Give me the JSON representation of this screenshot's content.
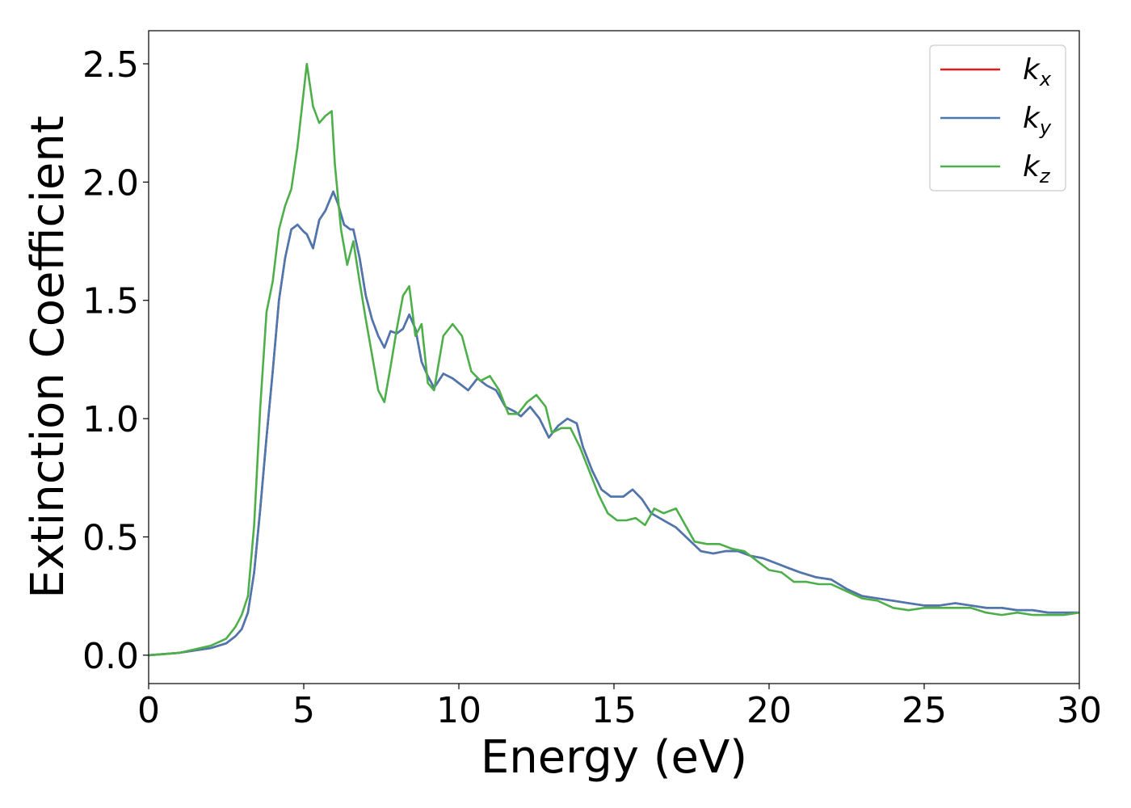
{
  "chart_data": {
    "type": "line",
    "title": "",
    "xlabel": "Energy (eV)",
    "ylabel": "Extinction Coefficient",
    "xlim": [
      0,
      30
    ],
    "ylim": [
      -0.12,
      2.64
    ],
    "xticks": [
      0,
      5,
      10,
      15,
      20,
      25,
      30
    ],
    "xtick_labels": [
      "0",
      "5",
      "10",
      "15",
      "20",
      "25",
      "30"
    ],
    "yticks": [
      0.0,
      0.5,
      1.0,
      1.5,
      2.0,
      2.5
    ],
    "ytick_labels": [
      "0.0",
      "0.5",
      "1.0",
      "1.5",
      "2.0",
      "2.5"
    ],
    "grid": false,
    "legend_position": "top-right",
    "series": [
      {
        "name": "k_x",
        "legend_base": "k",
        "legend_sub": "x",
        "color": "#e41a1c",
        "x": [
          0,
          1,
          2,
          2.5,
          2.8,
          3,
          3.2,
          3.4,
          3.6,
          3.8,
          4,
          4.2,
          4.4,
          4.6,
          4.8,
          5,
          5.1,
          5.3,
          5.5,
          5.7,
          5.95,
          6.1,
          6.3,
          6.5,
          6.6,
          6.8,
          7.0,
          7.2,
          7.4,
          7.6,
          7.8,
          8.0,
          8.2,
          8.4,
          8.6,
          8.8,
          9.0,
          9.2,
          9.5,
          9.8,
          10.0,
          10.3,
          10.6,
          10.9,
          11.2,
          11.5,
          11.8,
          12.0,
          12.3,
          12.6,
          12.9,
          13.2,
          13.5,
          13.8,
          14.0,
          14.3,
          14.6,
          14.9,
          15.3,
          15.6,
          15.9,
          16.2,
          16.6,
          17.0,
          17.4,
          17.8,
          18.2,
          18.6,
          19.0,
          19.4,
          19.8,
          20.2,
          20.6,
          21.0,
          21.5,
          22.0,
          22.5,
          23.0,
          23.5,
          24.0,
          24.5,
          25.0,
          25.5,
          26.0,
          26.5,
          27.0,
          27.5,
          28.0,
          28.5,
          29.0,
          29.5,
          30.0
        ],
        "y": [
          0.0,
          0.01,
          0.03,
          0.05,
          0.08,
          0.11,
          0.18,
          0.35,
          0.62,
          0.92,
          1.2,
          1.5,
          1.68,
          1.8,
          1.82,
          1.79,
          1.78,
          1.72,
          1.84,
          1.88,
          1.96,
          1.91,
          1.82,
          1.8,
          1.8,
          1.68,
          1.52,
          1.42,
          1.35,
          1.3,
          1.37,
          1.36,
          1.38,
          1.44,
          1.38,
          1.24,
          1.18,
          1.13,
          1.19,
          1.17,
          1.15,
          1.12,
          1.17,
          1.14,
          1.12,
          1.05,
          1.03,
          1.01,
          1.05,
          1.0,
          0.92,
          0.97,
          1.0,
          0.98,
          0.88,
          0.78,
          0.7,
          0.67,
          0.67,
          0.7,
          0.66,
          0.6,
          0.57,
          0.54,
          0.49,
          0.44,
          0.43,
          0.44,
          0.44,
          0.42,
          0.41,
          0.39,
          0.37,
          0.35,
          0.33,
          0.32,
          0.28,
          0.25,
          0.24,
          0.23,
          0.22,
          0.21,
          0.21,
          0.22,
          0.21,
          0.2,
          0.2,
          0.19,
          0.19,
          0.18,
          0.18,
          0.18
        ]
      },
      {
        "name": "k_y",
        "legend_base": "k",
        "legend_sub": "y",
        "color": "#4a78b0",
        "x": [
          0,
          1,
          2,
          2.5,
          2.8,
          3,
          3.2,
          3.4,
          3.6,
          3.8,
          4,
          4.2,
          4.4,
          4.6,
          4.8,
          5,
          5.1,
          5.3,
          5.5,
          5.7,
          5.95,
          6.1,
          6.3,
          6.5,
          6.6,
          6.8,
          7.0,
          7.2,
          7.4,
          7.6,
          7.8,
          8.0,
          8.2,
          8.4,
          8.6,
          8.8,
          9.0,
          9.2,
          9.5,
          9.8,
          10.0,
          10.3,
          10.6,
          10.9,
          11.2,
          11.5,
          11.8,
          12.0,
          12.3,
          12.6,
          12.9,
          13.2,
          13.5,
          13.8,
          14.0,
          14.3,
          14.6,
          14.9,
          15.3,
          15.6,
          15.9,
          16.2,
          16.6,
          17.0,
          17.4,
          17.8,
          18.2,
          18.6,
          19.0,
          19.4,
          19.8,
          20.2,
          20.6,
          21.0,
          21.5,
          22.0,
          22.5,
          23.0,
          23.5,
          24.0,
          24.5,
          25.0,
          25.5,
          26.0,
          26.5,
          27.0,
          27.5,
          28.0,
          28.5,
          29.0,
          29.5,
          30.0
        ],
        "y": [
          0.0,
          0.01,
          0.03,
          0.05,
          0.08,
          0.11,
          0.18,
          0.35,
          0.62,
          0.92,
          1.2,
          1.5,
          1.68,
          1.8,
          1.82,
          1.79,
          1.78,
          1.72,
          1.84,
          1.88,
          1.96,
          1.91,
          1.82,
          1.8,
          1.8,
          1.68,
          1.52,
          1.42,
          1.35,
          1.3,
          1.37,
          1.36,
          1.38,
          1.44,
          1.38,
          1.24,
          1.18,
          1.13,
          1.19,
          1.17,
          1.15,
          1.12,
          1.17,
          1.14,
          1.12,
          1.05,
          1.03,
          1.01,
          1.05,
          1.0,
          0.92,
          0.97,
          1.0,
          0.98,
          0.88,
          0.78,
          0.7,
          0.67,
          0.67,
          0.7,
          0.66,
          0.6,
          0.57,
          0.54,
          0.49,
          0.44,
          0.43,
          0.44,
          0.44,
          0.42,
          0.41,
          0.39,
          0.37,
          0.35,
          0.33,
          0.32,
          0.28,
          0.25,
          0.24,
          0.23,
          0.22,
          0.21,
          0.21,
          0.22,
          0.21,
          0.2,
          0.2,
          0.19,
          0.19,
          0.18,
          0.18,
          0.18
        ]
      },
      {
        "name": "k_z",
        "legend_base": "k",
        "legend_sub": "z",
        "color": "#4daf4a",
        "x": [
          0,
          1,
          2,
          2.5,
          2.8,
          3,
          3.2,
          3.4,
          3.6,
          3.8,
          4,
          4.2,
          4.4,
          4.6,
          4.8,
          5.1,
          5.3,
          5.5,
          5.7,
          5.9,
          6.0,
          6.2,
          6.4,
          6.6,
          6.8,
          7.0,
          7.2,
          7.4,
          7.6,
          7.8,
          8.0,
          8.2,
          8.4,
          8.6,
          8.8,
          9.0,
          9.2,
          9.5,
          9.8,
          10.1,
          10.4,
          10.7,
          11.0,
          11.3,
          11.6,
          11.9,
          12.2,
          12.5,
          12.8,
          13.0,
          13.3,
          13.6,
          13.9,
          14.2,
          14.5,
          14.8,
          15.1,
          15.4,
          15.7,
          16.0,
          16.3,
          16.6,
          17.0,
          17.3,
          17.6,
          18.0,
          18.4,
          18.8,
          19.2,
          19.6,
          20.0,
          20.4,
          20.8,
          21.2,
          21.6,
          22.0,
          22.5,
          23.0,
          23.5,
          24.0,
          24.5,
          25.0,
          25.5,
          26.0,
          26.5,
          27.0,
          27.5,
          28.0,
          28.5,
          29.0,
          29.5,
          30.0
        ],
        "y": [
          0.0,
          0.01,
          0.04,
          0.07,
          0.12,
          0.17,
          0.25,
          0.55,
          1.05,
          1.45,
          1.58,
          1.8,
          1.9,
          1.97,
          2.15,
          2.5,
          2.32,
          2.25,
          2.28,
          2.3,
          2.08,
          1.8,
          1.65,
          1.75,
          1.58,
          1.42,
          1.27,
          1.12,
          1.07,
          1.22,
          1.38,
          1.52,
          1.56,
          1.35,
          1.4,
          1.15,
          1.12,
          1.35,
          1.4,
          1.35,
          1.2,
          1.16,
          1.18,
          1.12,
          1.02,
          1.02,
          1.07,
          1.1,
          1.05,
          0.94,
          0.96,
          0.96,
          0.88,
          0.78,
          0.68,
          0.6,
          0.57,
          0.57,
          0.58,
          0.55,
          0.62,
          0.6,
          0.62,
          0.55,
          0.48,
          0.47,
          0.47,
          0.45,
          0.44,
          0.4,
          0.36,
          0.35,
          0.31,
          0.31,
          0.3,
          0.3,
          0.27,
          0.24,
          0.23,
          0.2,
          0.19,
          0.2,
          0.2,
          0.2,
          0.2,
          0.18,
          0.17,
          0.18,
          0.17,
          0.17,
          0.17,
          0.18
        ]
      }
    ]
  }
}
